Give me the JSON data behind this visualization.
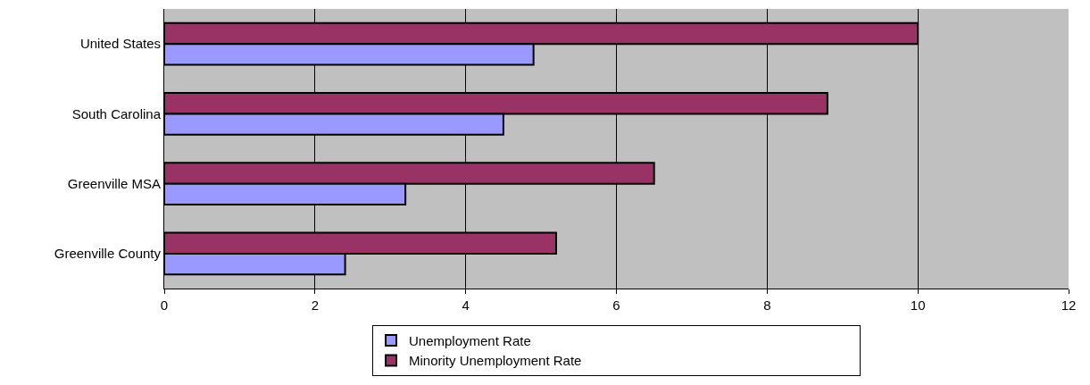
{
  "chart_data": {
    "type": "bar",
    "orientation": "horizontal",
    "categories": [
      "United States",
      "South Carolina",
      "Greenville MSA",
      "Greenville County"
    ],
    "series": [
      {
        "name": "Unemployment Rate",
        "color": "#9999ff",
        "values": [
          4.9,
          4.5,
          3.2,
          2.4
        ]
      },
      {
        "name": "Minority Unemployment Rate",
        "color": "#993366",
        "values": [
          10,
          8.8,
          6.5,
          5.2
        ]
      }
    ],
    "xlim": [
      0,
      12
    ],
    "xticks": [
      0,
      2,
      4,
      6,
      8,
      10,
      12
    ],
    "grid": "x",
    "legend": "bottom"
  }
}
